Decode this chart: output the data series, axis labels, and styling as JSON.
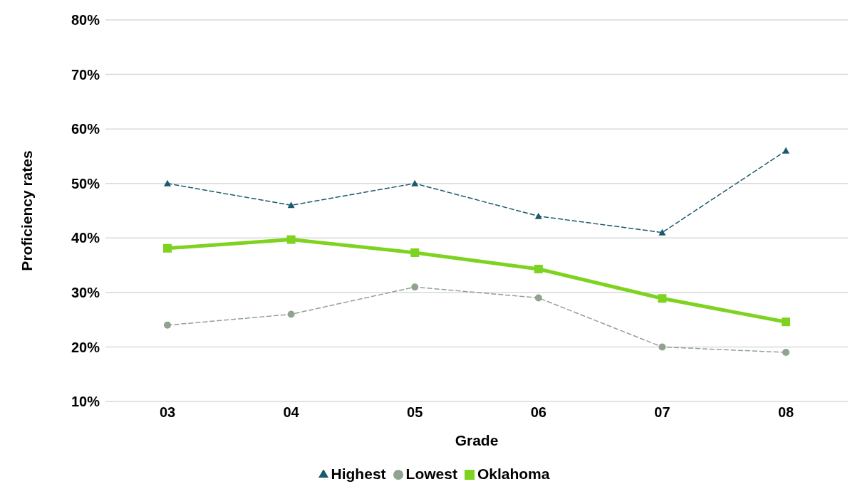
{
  "chart_data": {
    "type": "line",
    "xlabel": "Grade",
    "ylabel": "Proficiency rates",
    "categories": [
      "03",
      "04",
      "05",
      "06",
      "07",
      "08"
    ],
    "series": [
      {
        "name": "Oklahoma",
        "color": "#7ed321",
        "values": [
          38.1,
          39.7,
          37.3,
          34.3,
          28.9,
          24.6
        ],
        "marker": "square",
        "line_style": "solid"
      },
      {
        "name": "Highest",
        "color": "#1b5a6e",
        "values": [
          50,
          46,
          50,
          44,
          41,
          56
        ],
        "marker": "triangle",
        "line_style": "dashed"
      },
      {
        "name": "Lowest",
        "color": "#8fa38f",
        "values": [
          24,
          26,
          31,
          29,
          20,
          19
        ],
        "marker": "circle",
        "line_style": "dashed"
      }
    ],
    "ylim": [
      10,
      80
    ],
    "yticks": [
      {
        "value": 10,
        "label": "10%"
      },
      {
        "value": 20,
        "label": "20%"
      },
      {
        "value": 30,
        "label": "30%"
      },
      {
        "value": 40,
        "label": "40%"
      },
      {
        "value": 50,
        "label": "50%"
      },
      {
        "value": 60,
        "label": "60%"
      },
      {
        "value": 70,
        "label": "70%"
      },
      {
        "value": 80,
        "label": "80%"
      }
    ],
    "grid": "y",
    "legend": "bottom"
  }
}
